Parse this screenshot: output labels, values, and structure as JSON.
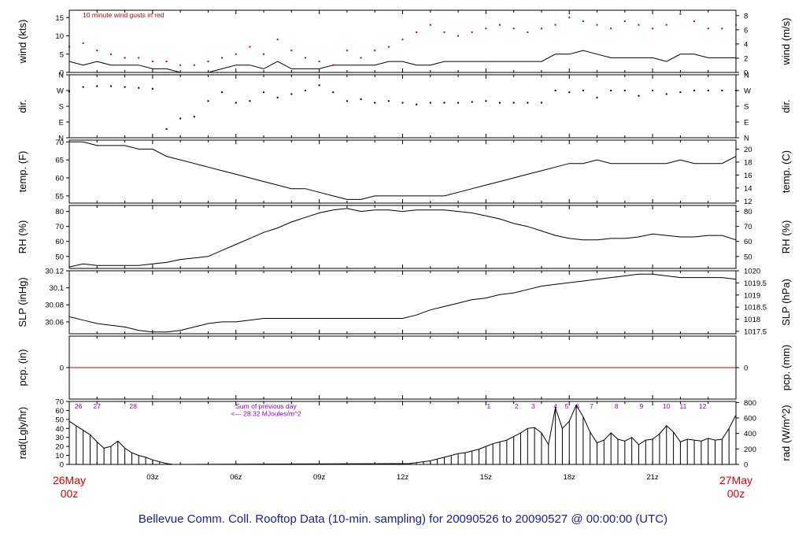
{
  "footer": {
    "title": "Bellevue Comm. Coll. Rooftop Data (10-min. sampling) for 20090526  to  20090527 @ 00:00:00  (UTC)"
  },
  "colors": {
    "axis": "#000000",
    "gust": "#cc0000",
    "precip_line": "#cc0000",
    "date_label": "#dd0000",
    "annotation": "#9900cc",
    "footer": "#1a1aa8"
  },
  "chart_data": [
    {
      "id": "wind",
      "type": "line",
      "ylabel_left": "wind (kts)",
      "ylabel_right": "wind (m/s)",
      "ylim": [
        0,
        17
      ],
      "yticks": [
        0,
        5,
        10,
        15
      ],
      "ylim_right": [
        0,
        8.75
      ],
      "yticks_right": [
        0,
        2,
        4,
        6,
        8
      ],
      "annotation": "10  minute wind gusts in red",
      "series": [
        {
          "style": "line",
          "x": [
            0,
            0.5,
            1,
            1.5,
            2,
            2.5,
            3,
            3.5,
            4,
            4.5,
            5,
            5.5,
            6,
            6.5,
            7,
            7.5,
            8,
            8.5,
            9,
            9.5,
            10,
            10.5,
            11,
            11.5,
            12,
            12.5,
            13,
            13.5,
            14,
            14.5,
            15,
            15.5,
            16,
            16.5,
            17,
            17.5,
            18,
            18.5,
            19,
            19.5,
            20,
            20.5,
            21,
            21.5,
            22,
            22.5,
            23,
            23.5,
            24
          ],
          "y": [
            3,
            2,
            3,
            2,
            2,
            2,
            1,
            1,
            0,
            0,
            0,
            1,
            2,
            2,
            1,
            3,
            1,
            1,
            1,
            2,
            2,
            2,
            2,
            3,
            3,
            2,
            2,
            3,
            3,
            3,
            3,
            3,
            3,
            3,
            3,
            5,
            5,
            6,
            5,
            4,
            4,
            4,
            4,
            3,
            5,
            5,
            4,
            4,
            4
          ]
        },
        {
          "style": "points",
          "color": "gust",
          "x": [
            0,
            0.5,
            1,
            1.5,
            2,
            2.5,
            3,
            3.5,
            4,
            4.5,
            5,
            5.5,
            6,
            6.5,
            7,
            7.5,
            8,
            8.5,
            9,
            9.5,
            10,
            10.5,
            11,
            11.5,
            12,
            12.5,
            13,
            13.5,
            14,
            14.5,
            15,
            15.5,
            16,
            16.5,
            17,
            17.5,
            18,
            18.5,
            19,
            19.5,
            20,
            20.5,
            21,
            21.5,
            22,
            22.5,
            23,
            23.5,
            24
          ],
          "y": [
            7,
            8,
            6,
            5,
            4,
            4,
            3,
            3,
            2,
            2,
            3,
            4,
            5,
            7,
            5,
            9,
            6,
            4,
            3,
            2,
            6,
            4,
            6,
            7,
            9,
            11,
            13,
            11,
            10,
            11,
            12,
            13,
            12,
            11,
            12,
            13,
            15,
            14,
            13,
            12,
            14,
            13,
            12,
            13,
            16,
            14,
            12,
            12,
            13
          ]
        }
      ]
    },
    {
      "id": "dir",
      "type": "scatter",
      "ylabel_left": "dir.",
      "ylabel_right": "dir.",
      "ylim": [
        0,
        360
      ],
      "yticks_labels": [
        "N",
        "E",
        "S",
        "W",
        "N"
      ],
      "yticks": [
        0,
        90,
        180,
        270,
        360
      ],
      "series": [
        {
          "style": "points",
          "x": [
            0,
            0.5,
            1,
            1.5,
            2,
            2.5,
            3,
            3.5,
            4,
            4.5,
            5,
            5.5,
            6,
            6.5,
            7,
            7.5,
            8,
            8.5,
            9,
            9.5,
            10,
            10.5,
            11,
            11.5,
            12,
            12.5,
            13,
            13.5,
            14,
            14.5,
            15,
            15.5,
            16,
            16.5,
            17,
            17.5,
            18,
            18.5,
            19,
            19.5,
            20,
            20.5,
            21,
            21.5,
            22,
            22.5,
            23,
            23.5,
            24
          ],
          "y": [
            265,
            290,
            295,
            295,
            290,
            285,
            280,
            50,
            110,
            120,
            210,
            260,
            200,
            210,
            260,
            230,
            250,
            270,
            300,
            260,
            210,
            220,
            200,
            210,
            200,
            190,
            200,
            200,
            200,
            205,
            210,
            200,
            200,
            200,
            200,
            270,
            260,
            270,
            230,
            270,
            270,
            240,
            270,
            250,
            260,
            270,
            270,
            270,
            270
          ]
        }
      ]
    },
    {
      "id": "temp",
      "type": "line",
      "ylabel_left": "temp. (F)",
      "ylabel_right": "temp. (C)",
      "ylim": [
        53,
        70.5
      ],
      "yticks": [
        55,
        60,
        65,
        70
      ],
      "ylim_right": [
        11.67,
        21.39
      ],
      "yticks_right": [
        12,
        14,
        16,
        18,
        20
      ],
      "series": [
        {
          "style": "line",
          "x": [
            0,
            0.5,
            1,
            1.5,
            2,
            2.5,
            3,
            3.5,
            4,
            4.5,
            5,
            5.5,
            6,
            6.5,
            7,
            7.5,
            8,
            8.5,
            9,
            9.5,
            10,
            10.5,
            11,
            11.5,
            12,
            12.5,
            13,
            13.5,
            14,
            14.5,
            15,
            15.5,
            16,
            16.5,
            17,
            17.5,
            18,
            18.5,
            19,
            19.5,
            20,
            20.5,
            21,
            21.5,
            22,
            22.5,
            23,
            23.5,
            24
          ],
          "y": [
            70,
            70,
            69,
            69,
            69,
            68,
            68,
            66,
            65,
            64,
            63,
            62,
            61,
            60,
            59,
            58,
            57,
            57,
            56,
            55,
            54,
            54,
            55,
            55,
            55,
            55,
            55,
            55,
            56,
            57,
            58,
            59,
            60,
            61,
            62,
            63,
            64,
            64,
            65,
            64,
            64,
            64,
            64,
            64,
            65,
            64,
            64,
            64,
            66
          ]
        }
      ]
    },
    {
      "id": "rh",
      "type": "line",
      "ylabel_left": "RH (%)",
      "ylabel_right": "RH (%)",
      "ylim": [
        42,
        84
      ],
      "yticks": [
        50,
        60,
        70,
        80
      ],
      "yticks_right": [
        50,
        60,
        70,
        80
      ],
      "series": [
        {
          "style": "line",
          "x": [
            0,
            0.5,
            1,
            1.5,
            2,
            2.5,
            3,
            3.5,
            4,
            4.5,
            5,
            5.5,
            6,
            6.5,
            7,
            7.5,
            8,
            8.5,
            9,
            9.5,
            10,
            10.5,
            11,
            11.5,
            12,
            12.5,
            13,
            13.5,
            14,
            14.5,
            15,
            15.5,
            16,
            16.5,
            17,
            17.5,
            18,
            18.5,
            19,
            19.5,
            20,
            20.5,
            21,
            21.5,
            22,
            22.5,
            23,
            23.5,
            24
          ],
          "y": [
            43,
            45,
            44,
            44,
            44,
            44,
            45,
            46,
            48,
            49,
            50,
            54,
            58,
            62,
            66,
            69,
            73,
            76,
            79,
            81,
            82,
            80,
            81,
            81,
            80,
            81,
            81,
            81,
            80,
            79,
            77,
            75,
            72,
            70,
            67,
            64,
            62,
            61,
            61,
            62,
            62,
            63,
            65,
            64,
            63,
            63,
            64,
            64,
            61
          ]
        }
      ]
    },
    {
      "id": "slp",
      "type": "line",
      "ylabel_left": "SLP (inHg)",
      "ylabel_right": "SLP (hPa)",
      "ylim": [
        30.046,
        30.12
      ],
      "yticks": [
        30.06,
        30.08,
        30.1,
        30.12
      ],
      "ylim_right": [
        1017.4,
        1020.0
      ],
      "yticks_right": [
        1017.5,
        1018,
        1018.5,
        1019,
        1019.5,
        1020
      ],
      "series": [
        {
          "style": "line",
          "x": [
            0,
            0.5,
            1,
            1.5,
            2,
            2.5,
            3,
            3.5,
            4,
            4.5,
            5,
            5.5,
            6,
            6.5,
            7,
            7.5,
            8,
            8.5,
            9,
            9.5,
            10,
            10.5,
            11,
            11.5,
            12,
            12.5,
            13,
            13.5,
            14,
            14.5,
            15,
            15.5,
            16,
            16.5,
            17,
            17.5,
            18,
            18.5,
            19,
            19.5,
            20,
            20.5,
            21,
            21.5,
            22,
            22.5,
            23,
            23.5,
            24
          ],
          "y": [
            30.066,
            30.062,
            30.058,
            30.056,
            30.054,
            30.05,
            30.048,
            30.048,
            30.05,
            30.054,
            30.058,
            30.06,
            30.06,
            30.062,
            30.064,
            30.064,
            30.064,
            30.064,
            30.064,
            30.064,
            30.064,
            30.064,
            30.064,
            30.064,
            30.064,
            30.068,
            30.074,
            30.078,
            30.082,
            30.086,
            30.088,
            30.092,
            30.094,
            30.098,
            30.102,
            30.104,
            30.106,
            30.108,
            30.11,
            30.112,
            30.114,
            30.116,
            30.116,
            30.114,
            30.112,
            30.112,
            30.112,
            30.112,
            30.11
          ]
        }
      ]
    },
    {
      "id": "pcp",
      "type": "line",
      "ylabel_left": "pcp. (in)",
      "ylabel_right": "pcp. (mm)",
      "ylim": [
        -1,
        1
      ],
      "yticks": [
        0
      ],
      "yticks_right": [
        0
      ],
      "series": [
        {
          "style": "line",
          "color": "precip_line",
          "x": [
            0,
            24
          ],
          "y": [
            0,
            0
          ]
        }
      ]
    },
    {
      "id": "rad",
      "type": "bar",
      "ylabel_left": "rad(Lgly/hr)",
      "ylabel_right": "rad (W/m^2)",
      "ylim": [
        0,
        70
      ],
      "yticks": [
        0,
        10,
        20,
        30,
        40,
        50,
        60,
        70
      ],
      "ylim_right": [
        0,
        814
      ],
      "yticks_right": [
        0,
        200,
        400,
        600,
        800
      ],
      "annotation_lines": [
        "Sum of previous day",
        "<--- 28.32 MJoules/m^2"
      ],
      "top_labels": [
        {
          "text": "26",
          "x": 0.33
        },
        {
          "text": "27",
          "x": 1.0
        },
        {
          "text": "28",
          "x": 2.3
        },
        {
          "text": "1",
          "x": 15.1
        },
        {
          "text": "2",
          "x": 16.1
        },
        {
          "text": "3",
          "x": 16.7
        },
        {
          "text": "4",
          "x": 17.5
        },
        {
          "text": "5",
          "x": 17.9
        },
        {
          "text": "6",
          "x": 18.3
        },
        {
          "text": "7",
          "x": 18.8
        },
        {
          "text": "8",
          "x": 19.7
        },
        {
          "text": "9",
          "x": 20.6
        },
        {
          "text": "10",
          "x": 21.5
        },
        {
          "text": "11",
          "x": 22.1
        },
        {
          "text": "12",
          "x": 22.8
        }
      ],
      "series": [
        {
          "style": "bars",
          "x": [
            0,
            0.25,
            0.5,
            0.75,
            1,
            1.25,
            1.5,
            1.75,
            2,
            2.25,
            2.5,
            2.75,
            3,
            3.25,
            3.5,
            3.75,
            12.25,
            12.5,
            12.75,
            13,
            13.25,
            13.5,
            13.75,
            14,
            14.25,
            14.5,
            14.75,
            15,
            15.25,
            15.5,
            15.75,
            16,
            16.25,
            16.5,
            16.75,
            17,
            17.25,
            17.5,
            17.75,
            18,
            18.25,
            18.5,
            18.75,
            19,
            19.25,
            19.5,
            19.75,
            20,
            20.25,
            20.5,
            20.75,
            21,
            21.25,
            21.5,
            21.75,
            22,
            22.25,
            22.5,
            22.75,
            23,
            23.25,
            23.5,
            23.75,
            24
          ],
          "y": [
            48,
            43,
            38,
            33,
            25,
            18,
            20,
            26,
            18,
            13,
            10,
            8,
            5,
            3,
            1,
            0,
            1,
            2,
            3,
            4,
            6,
            8,
            10,
            12,
            13,
            15,
            17,
            20,
            23,
            25,
            27,
            31,
            35,
            40,
            41,
            35,
            22,
            63,
            40,
            48,
            66,
            53,
            36,
            24,
            27,
            35,
            28,
            26,
            30,
            22,
            27,
            28,
            34,
            43,
            36,
            25,
            28,
            27,
            26,
            29,
            27,
            28,
            40,
            55
          ]
        }
      ]
    }
  ],
  "x_axis": {
    "xlim": [
      0,
      24
    ],
    "tick_labels": [
      {
        "x": 3,
        "label": "03z"
      },
      {
        "x": 6,
        "label": "06z"
      },
      {
        "x": 9,
        "label": "09z"
      },
      {
        "x": 12,
        "label": "12z"
      },
      {
        "x": 15,
        "label": "15z"
      },
      {
        "x": 18,
        "label": "18z"
      },
      {
        "x": 21,
        "label": "21z"
      }
    ],
    "start_label": {
      "date": "26May",
      "time": "00z"
    },
    "end_label": {
      "date": "27May",
      "time": "00z"
    }
  }
}
